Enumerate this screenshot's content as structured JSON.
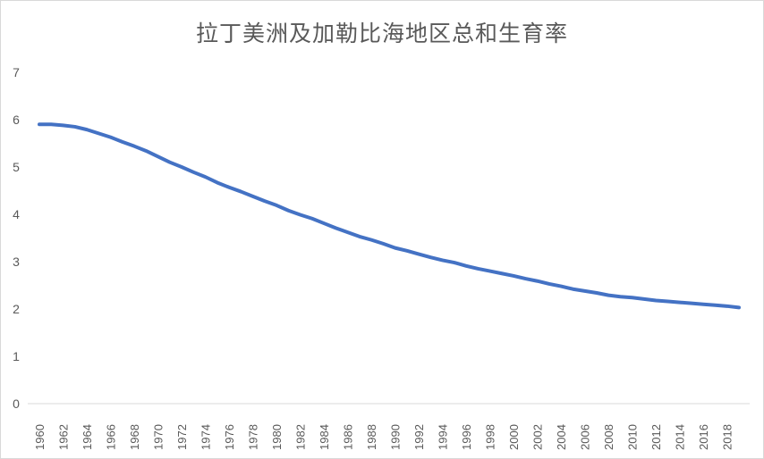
{
  "chart_data": {
    "type": "line",
    "title": "拉丁美洲及加勒比海地区总和生育率",
    "xlabel": "",
    "ylabel": "",
    "ylim": [
      0,
      7
    ],
    "yticks": [
      0,
      1,
      2,
      3,
      4,
      5,
      6,
      7
    ],
    "grid": false,
    "legend": "none",
    "x": [
      1960,
      1961,
      1962,
      1963,
      1964,
      1965,
      1966,
      1967,
      1968,
      1969,
      1970,
      1971,
      1972,
      1973,
      1974,
      1975,
      1976,
      1977,
      1978,
      1979,
      1980,
      1981,
      1982,
      1983,
      1984,
      1985,
      1986,
      1987,
      1988,
      1989,
      1990,
      1991,
      1992,
      1993,
      1994,
      1995,
      1996,
      1997,
      1998,
      1999,
      2000,
      2001,
      2002,
      2003,
      2004,
      2005,
      2006,
      2007,
      2008,
      2009,
      2010,
      2011,
      2012,
      2013,
      2014,
      2015,
      2016,
      2017,
      2018,
      2019
    ],
    "xtick_labels": [
      "1960",
      "1962",
      "1964",
      "1966",
      "1968",
      "1970",
      "1972",
      "1974",
      "1976",
      "1978",
      "1980",
      "1982",
      "1984",
      "1986",
      "1988",
      "1990",
      "1992",
      "1994",
      "1996",
      "1998",
      "2000",
      "2002",
      "2004",
      "2006",
      "2008",
      "2010",
      "2012",
      "2014",
      "2016",
      "2018"
    ],
    "series": [
      {
        "name": "",
        "color": "#4472C4",
        "values": [
          5.9,
          5.9,
          5.88,
          5.85,
          5.79,
          5.71,
          5.63,
          5.53,
          5.44,
          5.34,
          5.22,
          5.1,
          5.0,
          4.89,
          4.79,
          4.67,
          4.57,
          4.48,
          4.38,
          4.28,
          4.19,
          4.08,
          3.99,
          3.91,
          3.81,
          3.71,
          3.62,
          3.53,
          3.46,
          3.38,
          3.29,
          3.23,
          3.16,
          3.09,
          3.03,
          2.98,
          2.91,
          2.85,
          2.8,
          2.75,
          2.7,
          2.64,
          2.59,
          2.53,
          2.48,
          2.42,
          2.38,
          2.34,
          2.29,
          2.26,
          2.24,
          2.21,
          2.18,
          2.16,
          2.14,
          2.12,
          2.1,
          2.08,
          2.06,
          2.03
        ]
      }
    ]
  }
}
